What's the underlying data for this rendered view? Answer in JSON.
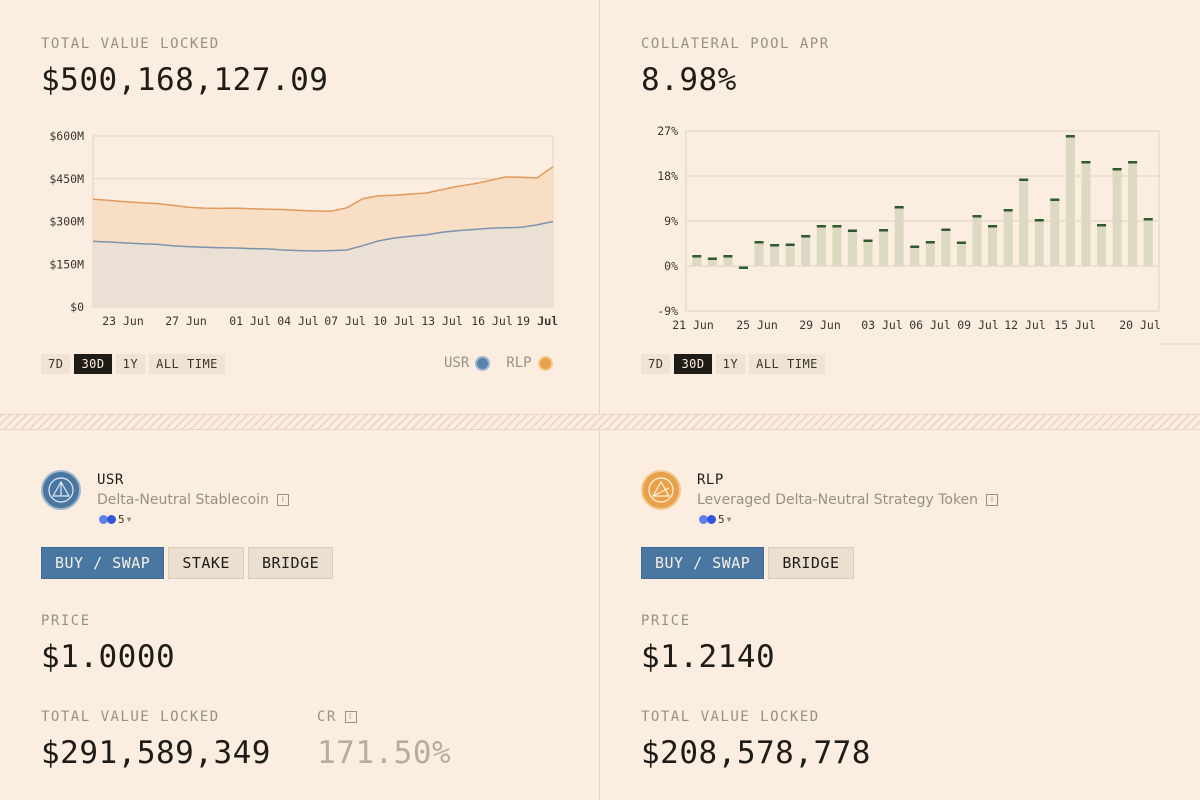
{
  "tvl_card": {
    "label": "TOTAL VALUE LOCKED",
    "value": "$500,168,127.09",
    "ranges": [
      "7D",
      "30D",
      "1Y",
      "ALL TIME"
    ],
    "active_range": "30D",
    "legend": [
      {
        "name": "USR",
        "color": "#5b84ad"
      },
      {
        "name": "RLP",
        "color": "#e9a04a"
      }
    ]
  },
  "apr_card": {
    "label": "COLLATERAL POOL APR",
    "value": "8.98%",
    "ranges": [
      "7D",
      "30D",
      "1Y",
      "ALL TIME"
    ],
    "active_range": "30D"
  },
  "chart_data": [
    {
      "type": "area",
      "title": "",
      "y_ticks": [
        "$600M",
        "$450M",
        "$300M",
        "$150M",
        "$0"
      ],
      "x_ticks": [
        "23 Jun",
        "27 Jun",
        "01 Jul",
        "04 Jul",
        "07 Jul",
        "10 Jul",
        "13 Jul",
        "16 Jul",
        "19 Jul"
      ],
      "ylim": [
        0,
        600
      ],
      "unit": "M",
      "stacked": true,
      "series": [
        {
          "name": "USR",
          "color": "#7d93ad",
          "values": [
            230,
            228,
            225,
            222,
            220,
            215,
            212,
            210,
            208,
            207,
            205,
            204,
            200,
            198,
            197,
            198,
            200,
            215,
            232,
            242,
            248,
            253,
            262,
            268,
            272,
            276,
            278,
            280,
            288,
            300
          ]
        },
        {
          "name": "RLP",
          "color": "#e39a5a",
          "values": [
            148,
            146,
            144,
            144,
            143,
            142,
            138,
            137,
            138,
            140,
            140,
            139,
            142,
            141,
            140,
            138,
            148,
            165,
            158,
            150,
            148,
            147,
            150,
            155,
            160,
            168,
            178,
            175,
            165,
            192
          ]
        }
      ]
    },
    {
      "type": "bar",
      "title": "",
      "y_ticks": [
        "27%",
        "18%",
        "9%",
        "0%",
        "-9%"
      ],
      "x_ticks": [
        "21 Jun",
        "25 Jun",
        "29 Jun",
        "03 Jul",
        "06 Jul",
        "09 Jul",
        "12 Jul",
        "15 Jul",
        "20 Jul"
      ],
      "ylim": [
        -9,
        27
      ],
      "values": [
        2.0,
        1.5,
        2.0,
        -0.3,
        4.8,
        4.2,
        4.3,
        6.0,
        8.0,
        8.0,
        7.1,
        5.1,
        7.2,
        11.8,
        3.9,
        4.8,
        7.3,
        4.7,
        10.0,
        8.0,
        11.2,
        17.3,
        9.2,
        13.3,
        26.0,
        20.8,
        8.2,
        19.4,
        20.8,
        9.4
      ]
    }
  ],
  "usr_card": {
    "name": "USR",
    "description": "Delta-Neutral Stablecoin",
    "chain_count": "5",
    "actions": [
      "BUY / SWAP",
      "STAKE",
      "BRIDGE"
    ],
    "price_label": "PRICE",
    "price": "$1.0000",
    "tvl_label": "TOTAL VALUE LOCKED",
    "tvl": "$291,589,349",
    "cr_label": "CR",
    "cr": "171.50%"
  },
  "rlp_card": {
    "name": "RLP",
    "description": "Leveraged Delta-Neutral Strategy Token",
    "chain_count": "5",
    "actions": [
      "BUY / SWAP",
      "BRIDGE"
    ],
    "price_label": "PRICE",
    "price": "$1.2140",
    "tvl_label": "TOTAL VALUE LOCKED",
    "tvl": "$208,578,778"
  }
}
